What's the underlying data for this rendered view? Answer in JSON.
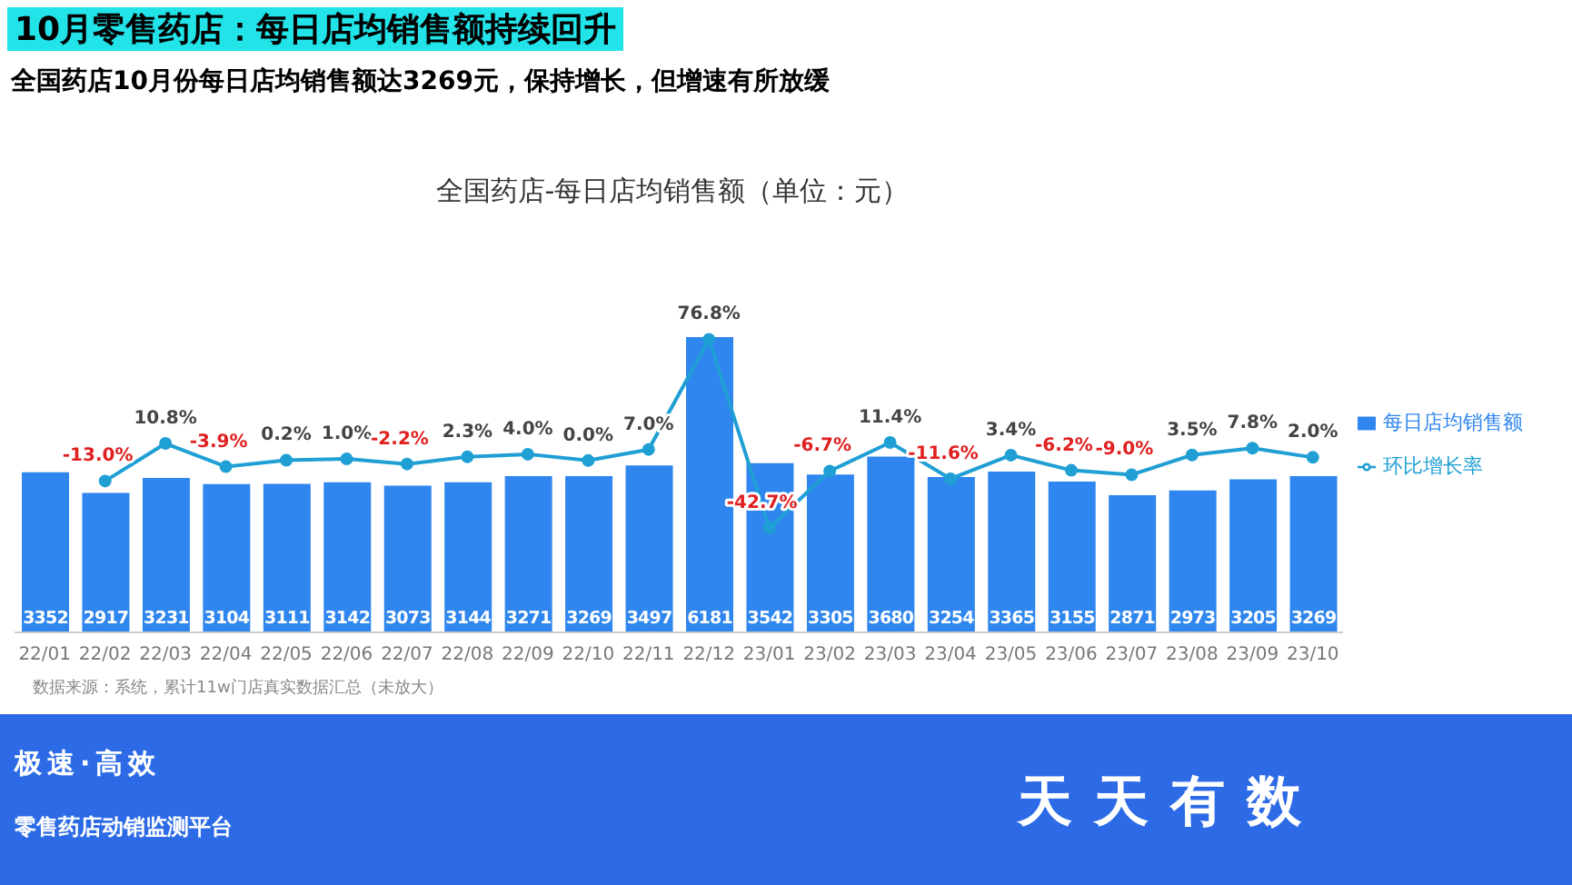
{
  "chart_data": {
    "type": "bar",
    "title": "全国药店-每日店均销售额（单位：元）",
    "subtitle": "全国药店10月份每日店均销售额达3269元，保持增长，但增速有所放缓",
    "annotations": [
      "10月零售药店：每日店均销售额持续回升",
      "数据来源：系统，累计11w门店真实数据汇总（未放大）",
      "极速·高效",
      "零售药店动销监测平台",
      "天天有数"
    ],
    "categories": [
      "22/01",
      "22/02",
      "22/03",
      "22/04",
      "22/05",
      "22/06",
      "22/07",
      "22/08",
      "22/09",
      "22/10",
      "22/11",
      "22/12",
      "23/01",
      "23/02",
      "23/03",
      "23/04",
      "23/05",
      "23/06",
      "23/07",
      "23/08",
      "23/09",
      "23/10"
    ],
    "series": [
      {
        "name": "每日店均销售额",
        "color": "#2f86ee",
        "values": [
          3352,
          2917,
          3231,
          3104,
          3111,
          3142,
          3073,
          3144,
          3271,
          3269,
          3497,
          6181,
          3542,
          3305,
          3680,
          3254,
          3365,
          3155,
          2871,
          2973,
          3205,
          3269
        ]
      },
      {
        "name": "环比增长率",
        "type": "line",
        "axis": "y2",
        "color": "#1f9fd4",
        "marker": "circle",
        "values": [
          null,
          -13.0,
          10.8,
          -3.9,
          0.2,
          1.0,
          -2.2,
          2.3,
          4.0,
          0.0,
          7.0,
          76.8,
          -42.7,
          -6.7,
          11.4,
          -11.6,
          3.4,
          -6.2,
          -9.0,
          3.5,
          7.8,
          2.0
        ],
        "value_labels": [
          null,
          "-13.0%",
          "10.8%",
          "-3.9%",
          "0.2%",
          "1.0%",
          "-2.2%",
          "2.3%",
          "4.0%",
          "0.0%",
          "7.0%",
          "76.8%",
          "-42.7%",
          "-6.7%",
          "11.4%",
          "-11.6%",
          "3.4%",
          "-6.2%",
          "-9.0%",
          "3.5%",
          "7.8%",
          "2.0%"
        ]
      }
    ],
    "tick_labels": "x",
    "data_labels": true,
    "legend": "right"
  }
}
